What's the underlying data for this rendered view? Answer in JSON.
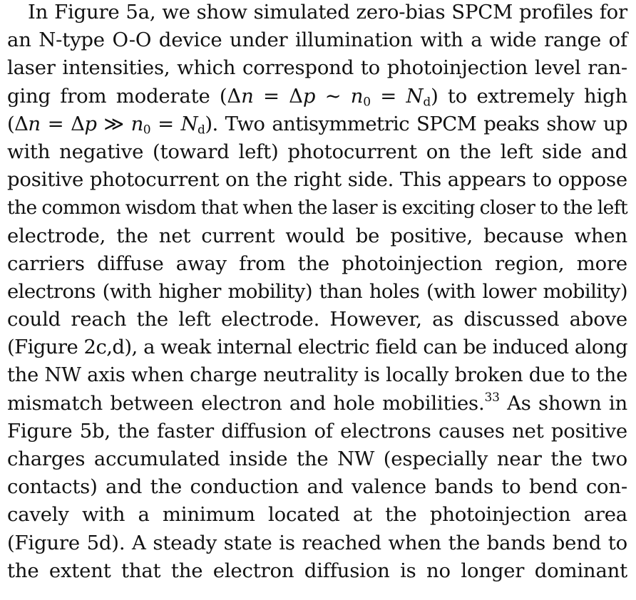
{
  "paper": {
    "lines": [
      "In Figure 5a, we show simulated zero-bias SPCM profiles for",
      "an N-type O-O device under illumination with a wide range of",
      "laser intensities, which correspond to photoinjection level ran-",
      "ging from moderate (Δn = Δp ∼ n0 = Nd) to extremely high",
      "(Δn = Δp ≫ n0 = Nd). Two antisymmetric SPCM peaks show up",
      "with negative (toward left) photocurrent on the left side and",
      "positive photocurrent on the right side. This appears to oppose",
      "the common wisdom that when the laser is exciting closer to the left",
      "electrode, the net current would be positive, because when",
      "carriers diffuse away from the photoinjection region, more",
      "electrons (with higher mobility) than holes (with lower mobility)",
      "could reach the left electrode. However, as discussed above",
      "(Figure 2c,d), a weak internal electric field can be induced along",
      "the NW axis when charge neutrality is locally broken due to the",
      "mismatch between electron and hole mobilities.33 As shown in",
      "Figure 5b, the faster diffusion of electrons causes net positive",
      "charges accumulated inside the NW (especially near the two",
      "contacts) and the conduction and valence bands to bend con-",
      "cavely with a minimum located at the photoinjection area",
      "(Figure 5d). A steady state is reached when the bands bend to",
      "the extent that the electron diffusion is no longer dominant"
    ],
    "line4": {
      "pre": "ging from moderate (",
      "d1": "Δ",
      "n": "n",
      "eq1": " = ",
      "d2": "Δ",
      "p": "p",
      "sim": " ∼ ",
      "n0": "n",
      "n0sub": "0",
      "eq2": " = ",
      "N": "N",
      "Nsub": "d",
      "post": ") to extremely high"
    },
    "line5": {
      "pre": "(",
      "d1": "Δ",
      "n": "n",
      "eq1": " = ",
      "d2": "Δ",
      "p": "p",
      "gg": " ≫ ",
      "n0": "n",
      "n0sub": "0",
      "eq2": " = ",
      "N": "N",
      "Nsub": "d",
      "post": "). Two antisymmetric SPCM peaks show up"
    },
    "line15": {
      "text": "mismatch between electron and hole mobilities.",
      "ref": "33",
      "post": " As shown in"
    }
  }
}
